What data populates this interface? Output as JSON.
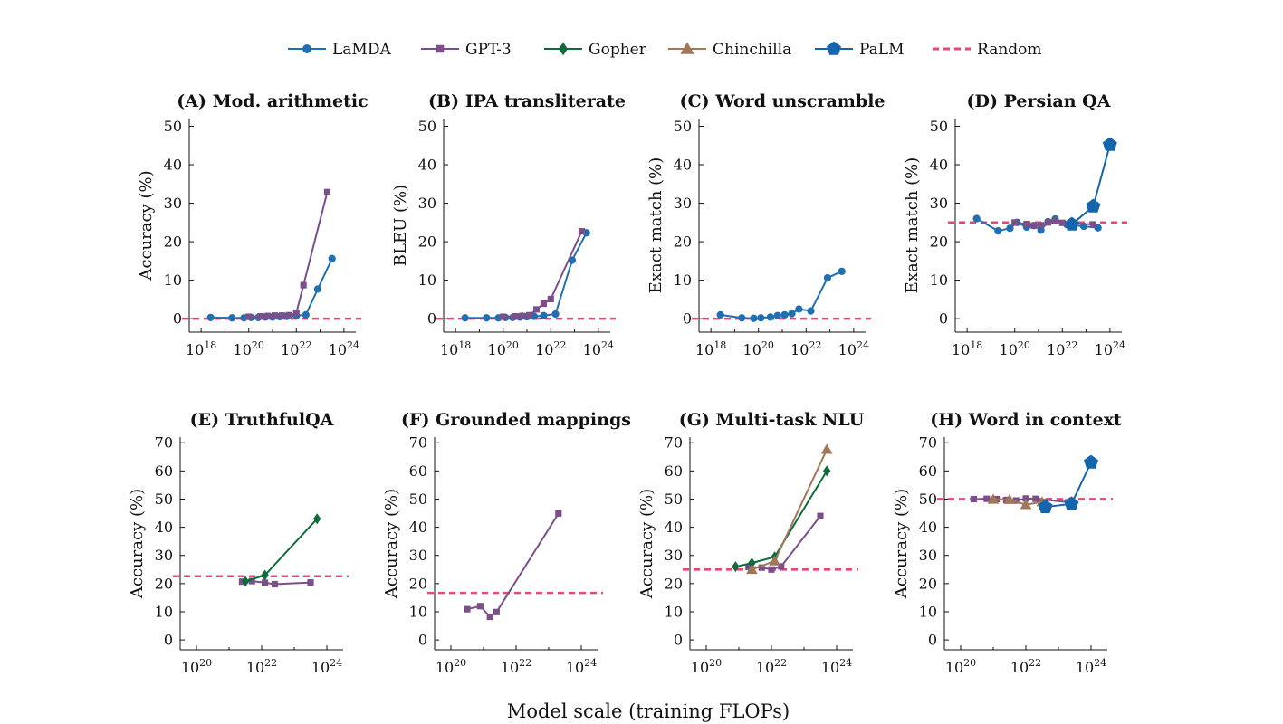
{
  "figure": {
    "xlabel": "Model scale (training FLOPs)"
  },
  "legend": [
    {
      "name": "LaMDA",
      "color": "#1f6fb2",
      "marker": "circle",
      "line": "solid"
    },
    {
      "name": "GPT-3",
      "color": "#7b4f8a",
      "marker": "square",
      "line": "solid"
    },
    {
      "name": "Gopher",
      "color": "#0e6b3a",
      "marker": "diamond",
      "line": "solid"
    },
    {
      "name": "Chinchilla",
      "color": "#a1775a",
      "marker": "triangle",
      "line": "solid"
    },
    {
      "name": "PaLM",
      "color": "#1565ad",
      "marker": "pentagon",
      "line": "solid"
    },
    {
      "name": "Random",
      "color": "#e8457a",
      "marker": "none",
      "line": "dashed"
    }
  ],
  "chart_data": [
    {
      "id": "A",
      "type": "line",
      "title": "(A) Mod. arithmetic",
      "ylabel": "Accuracy (%)",
      "xscale": "log",
      "xlim": [
        17.5,
        24.5
      ],
      "xticks": [
        18,
        20,
        22,
        24
      ],
      "ylim": [
        -3.5,
        52
      ],
      "yticks": [
        0,
        10,
        20,
        30,
        40,
        50
      ],
      "random": 0,
      "series": [
        {
          "name": "LaMDA",
          "points": [
            [
              18.4,
              0.3
            ],
            [
              19.3,
              0.2
            ],
            [
              19.8,
              0.2
            ],
            [
              20.1,
              0.3
            ],
            [
              20.4,
              0.3
            ],
            [
              20.7,
              0.4
            ],
            [
              21.0,
              0.4
            ],
            [
              21.3,
              0.5
            ],
            [
              21.6,
              0.6
            ],
            [
              22.0,
              0.8
            ],
            [
              22.4,
              1.0
            ],
            [
              22.9,
              7.7
            ],
            [
              23.5,
              15.6
            ]
          ]
        },
        {
          "name": "GPT-3",
          "points": [
            [
              20.0,
              0.5
            ],
            [
              20.5,
              0.6
            ],
            [
              20.8,
              0.7
            ],
            [
              21.1,
              0.8
            ],
            [
              21.4,
              0.8
            ],
            [
              21.7,
              0.9
            ],
            [
              22.0,
              1.5
            ],
            [
              22.3,
              8.7
            ],
            [
              23.3,
              32.9
            ]
          ]
        }
      ]
    },
    {
      "id": "B",
      "type": "line",
      "title": "(B) IPA transliterate",
      "ylabel": "BLEU (%)",
      "xscale": "log",
      "xlim": [
        17.5,
        24.5
      ],
      "xticks": [
        18,
        20,
        22,
        24
      ],
      "ylim": [
        -3.5,
        52
      ],
      "yticks": [
        0,
        10,
        20,
        30,
        40,
        50
      ],
      "random": 0,
      "series": [
        {
          "name": "LaMDA",
          "points": [
            [
              18.4,
              0.2
            ],
            [
              19.3,
              0.2
            ],
            [
              19.8,
              0.2
            ],
            [
              20.1,
              0.3
            ],
            [
              20.4,
              0.3
            ],
            [
              20.7,
              0.4
            ],
            [
              21.0,
              0.5
            ],
            [
              21.3,
              0.6
            ],
            [
              21.7,
              0.8
            ],
            [
              22.2,
              1.2
            ],
            [
              22.9,
              15.2
            ],
            [
              23.5,
              22.3
            ]
          ]
        },
        {
          "name": "GPT-3",
          "points": [
            [
              20.0,
              0.5
            ],
            [
              20.5,
              0.6
            ],
            [
              20.8,
              0.7
            ],
            [
              21.1,
              0.9
            ],
            [
              21.4,
              2.4
            ],
            [
              21.7,
              3.9
            ],
            [
              22.0,
              5.1
            ],
            [
              23.3,
              22.7
            ]
          ]
        }
      ]
    },
    {
      "id": "C",
      "type": "line",
      "title": "(C) Word unscramble",
      "ylabel": "Exact match (%)",
      "xscale": "log",
      "xlim": [
        17.5,
        24.5
      ],
      "xticks": [
        18,
        20,
        22,
        24
      ],
      "ylim": [
        -3.5,
        52
      ],
      "yticks": [
        0,
        10,
        20,
        30,
        40,
        50
      ],
      "random": 0,
      "series": [
        {
          "name": "LaMDA",
          "points": [
            [
              18.4,
              1.0
            ],
            [
              19.3,
              0.2
            ],
            [
              19.8,
              0.1
            ],
            [
              20.1,
              0.2
            ],
            [
              20.5,
              0.4
            ],
            [
              20.8,
              0.8
            ],
            [
              21.1,
              1.0
            ],
            [
              21.4,
              1.3
            ],
            [
              21.7,
              2.5
            ],
            [
              22.2,
              2.0
            ],
            [
              22.9,
              10.6
            ],
            [
              23.5,
              12.3
            ]
          ]
        }
      ]
    },
    {
      "id": "D",
      "type": "line",
      "title": "(D) Persian QA",
      "ylabel": "Exact match (%)",
      "xscale": "log",
      "xlim": [
        17.5,
        24.5
      ],
      "xticks": [
        18,
        20,
        22,
        24
      ],
      "ylim": [
        -3.5,
        52
      ],
      "yticks": [
        0,
        10,
        20,
        30,
        40,
        50
      ],
      "random": 25,
      "series": [
        {
          "name": "LaMDA",
          "points": [
            [
              18.4,
              26.0
            ],
            [
              19.3,
              22.8
            ],
            [
              19.8,
              23.5
            ],
            [
              20.1,
              25.0
            ],
            [
              20.5,
              23.8
            ],
            [
              20.8,
              24.2
            ],
            [
              21.1,
              23.0
            ],
            [
              21.4,
              25.2
            ],
            [
              21.7,
              25.9
            ],
            [
              22.2,
              24.4
            ],
            [
              22.9,
              24.0
            ],
            [
              23.5,
              23.6
            ]
          ]
        },
        {
          "name": "GPT-3",
          "points": [
            [
              20.0,
              25.0
            ],
            [
              20.5,
              24.6
            ],
            [
              20.8,
              24.2
            ],
            [
              21.1,
              24.3
            ],
            [
              21.4,
              25.0
            ],
            [
              21.7,
              25.4
            ],
            [
              22.0,
              24.9
            ],
            [
              23.3,
              24.5
            ]
          ]
        },
        {
          "name": "PaLM",
          "points": [
            [
              22.4,
              24.5
            ],
            [
              23.3,
              29.2
            ],
            [
              24.0,
              45.2
            ]
          ]
        }
      ]
    },
    {
      "id": "E",
      "type": "line",
      "title": "(E) TruthfulQA",
      "ylabel": "Accuracy (%)",
      "xscale": "log",
      "xlim": [
        19.5,
        24.5
      ],
      "xticks": [
        20,
        22,
        24
      ],
      "ylim": [
        -3.5,
        72
      ],
      "yticks": [
        0,
        10,
        20,
        30,
        40,
        50,
        60,
        70
      ],
      "random": 22.6,
      "series": [
        {
          "name": "GPT-3",
          "points": [
            [
              21.4,
              20.7
            ],
            [
              21.7,
              20.9
            ],
            [
              22.1,
              20.3
            ],
            [
              22.4,
              19.8
            ],
            [
              23.5,
              20.4
            ]
          ]
        },
        {
          "name": "Gopher",
          "points": [
            [
              21.5,
              20.8
            ],
            [
              22.1,
              23.0
            ],
            [
              23.7,
              43.0
            ]
          ]
        }
      ]
    },
    {
      "id": "F",
      "type": "line",
      "title": "(F) Grounded mappings",
      "ylabel": "Accuracy (%)",
      "xscale": "log",
      "xlim": [
        19.5,
        24.5
      ],
      "xticks": [
        20,
        22,
        24
      ],
      "ylim": [
        -3.5,
        72
      ],
      "yticks": [
        0,
        10,
        20,
        30,
        40,
        50,
        60,
        70
      ],
      "random": 16.7,
      "series": [
        {
          "name": "GPT-3",
          "points": [
            [
              20.5,
              10.9
            ],
            [
              20.9,
              12.0
            ],
            [
              21.2,
              8.2
            ],
            [
              21.4,
              9.9
            ],
            [
              23.3,
              44.9
            ]
          ]
        }
      ]
    },
    {
      "id": "G",
      "type": "line",
      "title": "(G) Multi-task NLU",
      "ylabel": "Accuracy (%)",
      "xscale": "log",
      "xlim": [
        19.5,
        24.5
      ],
      "xticks": [
        20,
        22,
        24
      ],
      "ylim": [
        -3.5,
        72
      ],
      "yticks": [
        0,
        10,
        20,
        30,
        40,
        50,
        60,
        70
      ],
      "random": 25,
      "series": [
        {
          "name": "GPT-3",
          "points": [
            [
              21.3,
              25.9
            ],
            [
              21.7,
              25.7
            ],
            [
              22.0,
              25.0
            ],
            [
              22.3,
              26.1
            ],
            [
              23.5,
              44.0
            ]
          ]
        },
        {
          "name": "Gopher",
          "points": [
            [
              20.9,
              26.0
            ],
            [
              21.4,
              27.3
            ],
            [
              22.1,
              29.5
            ],
            [
              23.7,
              60.0
            ]
          ]
        },
        {
          "name": "Chinchilla",
          "points": [
            [
              21.4,
              25.0
            ],
            [
              22.1,
              28.0
            ],
            [
              23.7,
              67.6
            ]
          ]
        }
      ]
    },
    {
      "id": "H",
      "type": "line",
      "title": "(H) Word in context",
      "ylabel": "Accuracy (%)",
      "xscale": "log",
      "xlim": [
        19.5,
        24.5
      ],
      "xticks": [
        20,
        22,
        24
      ],
      "ylim": [
        -3.5,
        72
      ],
      "yticks": [
        0,
        10,
        20,
        30,
        40,
        50,
        60,
        70
      ],
      "random": 50,
      "series": [
        {
          "name": "GPT-3",
          "points": [
            [
              20.4,
              50.0
            ],
            [
              20.8,
              50.1
            ],
            [
              21.1,
              50.0
            ],
            [
              21.4,
              49.7
            ],
            [
              21.7,
              49.5
            ],
            [
              22.0,
              50.2
            ],
            [
              22.3,
              50.1
            ],
            [
              23.3,
              48.9
            ]
          ]
        },
        {
          "name": "Chinchilla",
          "points": [
            [
              21.0,
              49.9
            ],
            [
              21.5,
              49.8
            ],
            [
              22.0,
              48.0
            ],
            [
              22.5,
              49.0
            ]
          ]
        },
        {
          "name": "PaLM",
          "points": [
            [
              22.6,
              47.2
            ],
            [
              23.4,
              48.3
            ],
            [
              24.0,
              63.0
            ]
          ]
        }
      ]
    }
  ]
}
